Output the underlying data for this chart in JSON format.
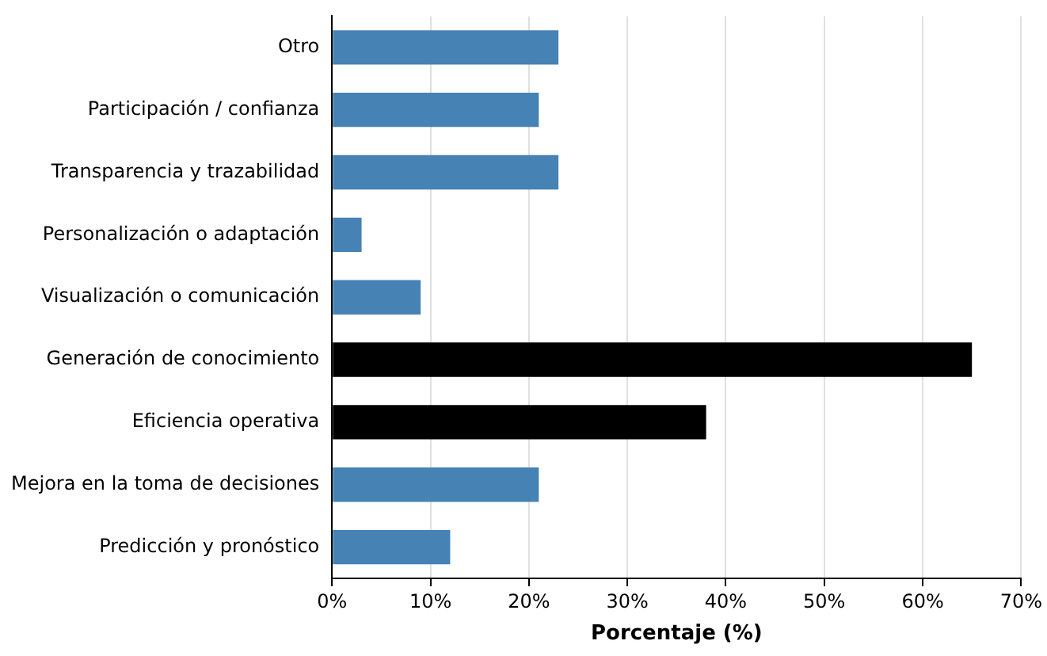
{
  "chart_data": {
    "type": "bar",
    "orientation": "horizontal",
    "xlabel": "Porcentaje (%)",
    "categories": [
      "Otro",
      "Participación / confianza",
      "Transparencia y trazabilidad",
      "Personalización o adaptación",
      "Visualización o comunicación",
      "Generación de conocimiento",
      "Eficiencia operativa",
      "Mejora en la toma de decisiones",
      "Predicción y pronóstico"
    ],
    "values": [
      23,
      21,
      23,
      3,
      9,
      65,
      38,
      21,
      12
    ],
    "colors": [
      "#4682b4",
      "#4682b4",
      "#4682b4",
      "#4682b4",
      "#4682b4",
      "#000000",
      "#000000",
      "#4682b4",
      "#4682b4"
    ],
    "xlim": [
      0,
      70
    ],
    "xticks": [
      {
        "value": 0,
        "label": "0%"
      },
      {
        "value": 10,
        "label": "10%"
      },
      {
        "value": 20,
        "label": "20%"
      },
      {
        "value": 30,
        "label": "30%"
      },
      {
        "value": 40,
        "label": "40%"
      },
      {
        "value": 50,
        "label": "50%"
      },
      {
        "value": 60,
        "label": "60%"
      },
      {
        "value": 70,
        "label": "70%"
      }
    ],
    "grid": "x",
    "legend": false
  }
}
